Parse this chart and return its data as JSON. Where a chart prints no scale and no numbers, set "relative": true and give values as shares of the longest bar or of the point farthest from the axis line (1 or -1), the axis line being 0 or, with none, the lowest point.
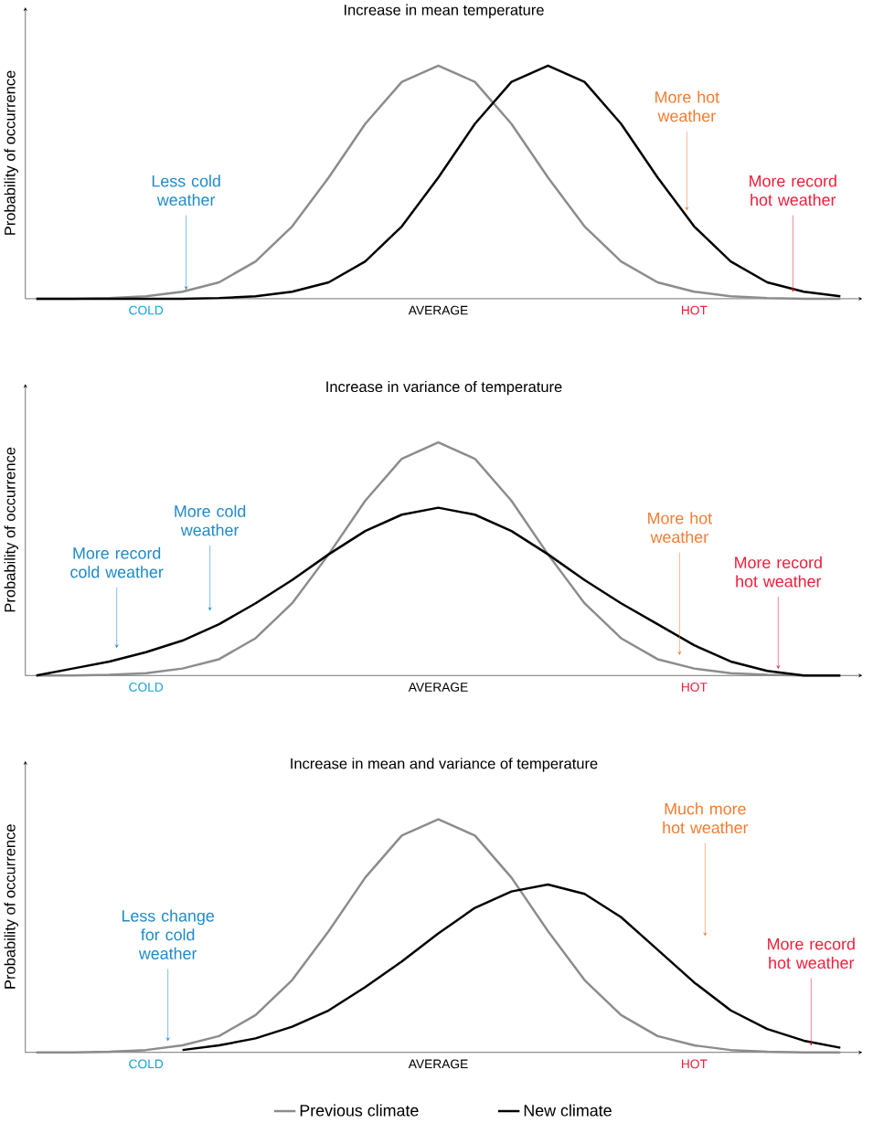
{
  "chart_data": [
    {
      "type": "line",
      "relative": true,
      "title": "Increase in mean temperature",
      "ylabel": "Probability of occurrence",
      "categories": [
        null,
        null,
        null,
        "COLD",
        null,
        null,
        null,
        null,
        null,
        null,
        null,
        "AVERAGE",
        null,
        null,
        null,
        null,
        null,
        null,
        "HOT",
        null,
        null,
        null,
        null
      ],
      "series": [
        {
          "color": "#8c8c8c",
          "values": [
            0,
            0,
            0.003,
            0.01,
            0.03,
            0.07,
            0.16,
            0.31,
            0.52,
            0.75,
            0.93,
            1,
            0.93,
            0.75,
            0.52,
            0.31,
            0.16,
            0.07,
            0.03,
            0.01,
            0.003,
            0,
            0
          ]
        },
        {
          "color": "#000000",
          "values": [
            0,
            0,
            0,
            0,
            0,
            0.003,
            0.01,
            0.03,
            0.07,
            0.16,
            0.31,
            0.52,
            0.75,
            0.93,
            1,
            0.93,
            0.75,
            0.52,
            0.31,
            0.16,
            0.07,
            0.03,
            0.01
          ]
        }
      ],
      "annotations": [
        "Less cold weather",
        "More hot weather",
        "More record hot weather"
      ]
    },
    {
      "type": "line",
      "relative": true,
      "title": "Increase in variance of temperature",
      "ylabel": "Probability of occurrence",
      "categories": [
        null,
        null,
        null,
        "COLD",
        null,
        null,
        null,
        null,
        null,
        null,
        null,
        "AVERAGE",
        null,
        null,
        null,
        null,
        null,
        null,
        "HOT",
        null,
        null,
        null,
        null
      ],
      "series": [
        {
          "color": "#8c8c8c",
          "values": [
            0,
            0,
            0.003,
            0.01,
            0.03,
            0.07,
            0.16,
            0.31,
            0.52,
            0.75,
            0.93,
            1,
            0.93,
            0.75,
            0.52,
            0.31,
            0.16,
            0.07,
            0.03,
            0.01,
            0.003,
            0,
            0
          ]
        },
        {
          "color": "#000000",
          "values": [
            0,
            0.03,
            0.06,
            0.1,
            0.15,
            0.22,
            0.31,
            0.41,
            0.52,
            0.62,
            0.69,
            0.72,
            0.69,
            0.62,
            0.52,
            0.41,
            0.31,
            0.22,
            0.13,
            0.06,
            0.02,
            0,
            0
          ]
        }
      ],
      "annotations": [
        "More record cold weather",
        "More cold weather",
        "More hot weather",
        "More record hot weather"
      ]
    },
    {
      "type": "line",
      "relative": true,
      "title": "Increase in mean and variance of temperature",
      "ylabel": "Probability of occurrence",
      "legend": "bottom",
      "categories": [
        null,
        null,
        null,
        "COLD",
        null,
        null,
        null,
        null,
        null,
        null,
        null,
        "AVERAGE",
        null,
        null,
        null,
        null,
        null,
        null,
        "HOT",
        null,
        null,
        null,
        null
      ],
      "series": [
        {
          "name": "Previous climate",
          "color": "#8c8c8c",
          "values": [
            0,
            0,
            0.003,
            0.01,
            0.03,
            0.07,
            0.16,
            0.31,
            0.52,
            0.75,
            0.93,
            1,
            0.93,
            0.75,
            0.52,
            0.31,
            0.16,
            0.07,
            0.03,
            0.01,
            0.003,
            0,
            0
          ]
        },
        {
          "name": "New climate",
          "color": "#000000",
          "values": [
            null,
            null,
            null,
            null,
            0.01,
            0.03,
            0.06,
            0.11,
            0.18,
            0.28,
            0.39,
            0.51,
            0.62,
            0.69,
            0.72,
            0.68,
            0.58,
            0.44,
            0.3,
            0.18,
            0.1,
            0.05,
            0.02
          ]
        }
      ],
      "annotations": [
        "Less change for cold weather",
        "Much more hot weather",
        "More record hot weather"
      ]
    }
  ]
}
